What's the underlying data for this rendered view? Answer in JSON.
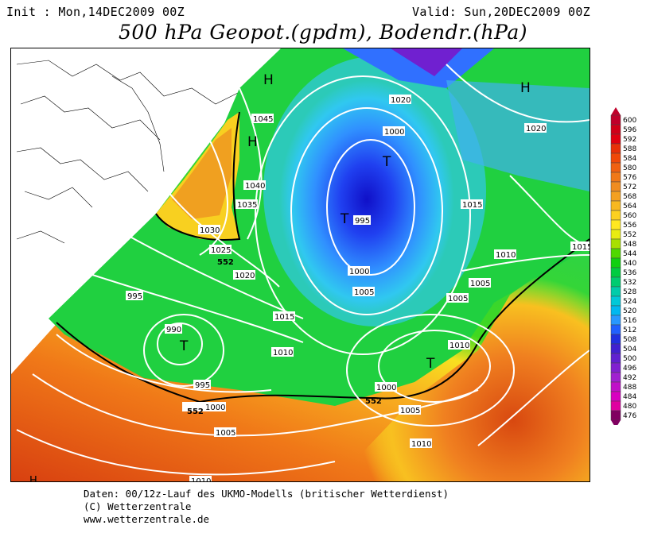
{
  "header": {
    "init": "Init : Mon,14DEC2009 00Z",
    "valid": "Valid: Sun,20DEC2009 00Z",
    "title": "500 hPa Geopot.(gpdm), Bodendr.(hPa)"
  },
  "map": {
    "isobars": [
      "1045",
      "1040",
      "1035",
      "1030",
      "1025",
      "1020",
      "1015",
      "1010",
      "1005",
      "1000",
      "995",
      "990",
      "1025",
      "1020",
      "1015",
      "1010",
      "1005",
      "1000",
      "995",
      "1005",
      "1000",
      "1020",
      "1010",
      "1005",
      "1000",
      "1005",
      "1010",
      "995",
      "1000",
      "1005",
      "1010",
      "1015"
    ],
    "geopot_labels": [
      "552",
      "552",
      "552",
      "552"
    ],
    "pressure_centers": [
      {
        "type": "H",
        "label": "H"
      },
      {
        "type": "H",
        "label": "H"
      },
      {
        "type": "H",
        "label": "H"
      },
      {
        "type": "T",
        "label": "T"
      },
      {
        "type": "T",
        "label": "T"
      },
      {
        "type": "T",
        "label": "T"
      },
      {
        "type": "T",
        "label": "T"
      },
      {
        "type": "H",
        "label": "H"
      }
    ]
  },
  "legend": {
    "values": [
      "600",
      "596",
      "592",
      "588",
      "584",
      "580",
      "576",
      "572",
      "568",
      "564",
      "560",
      "556",
      "552",
      "548",
      "544",
      "540",
      "536",
      "532",
      "528",
      "524",
      "520",
      "516",
      "512",
      "508",
      "504",
      "500",
      "496",
      "492",
      "488",
      "484",
      "480",
      "476"
    ],
    "colors": [
      "#c0002a",
      "#d00018",
      "#e00010",
      "#e83008",
      "#f04808",
      "#f06010",
      "#f07818",
      "#f08c20",
      "#f4a020",
      "#f8b820",
      "#fcd020",
      "#ffe820",
      "#e8ec10",
      "#a8e000",
      "#50d800",
      "#10d010",
      "#00cc40",
      "#00cc70",
      "#00ccaa",
      "#00c8d8",
      "#00b8f0",
      "#2898ff",
      "#2060ff",
      "#2030e0",
      "#4020d0",
      "#6020d0",
      "#8020d0",
      "#a020d0",
      "#c010c8",
      "#d800c0",
      "#e000a0",
      "#800060"
    ]
  },
  "footer": {
    "line1": "Daten: 00/12z-Lauf des UKMO-Modells (britischer Wetterdienst)",
    "line2": "(C) Wetterzentrale",
    "line3": "www.wetterzentrale.de"
  }
}
